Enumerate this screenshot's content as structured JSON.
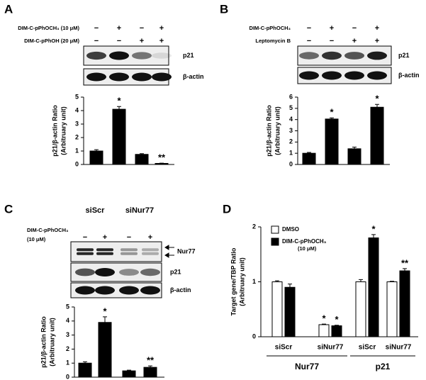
{
  "chart_data": [
    {
      "type": "bar",
      "panel": "A",
      "treatments": [
        {
          "label": [
            "DIM-C-pPhOCH₃ (10 μM)"
          ],
          "signs": [
            "−",
            "+",
            "−",
            "+"
          ]
        },
        {
          "label": [
            "DIM-C-pPhOH (20 μM)"
          ],
          "signs": [
            "−",
            "−",
            "+",
            "+"
          ]
        }
      ],
      "blots": [
        "p21",
        "β-actin"
      ],
      "ylabel": [
        "p21/β-actin Ratio",
        "(Arbitruary unit)"
      ],
      "values": [
        1.0,
        4.1,
        0.75,
        0.08
      ],
      "errors": [
        0.1,
        0.2,
        0.05,
        0.02
      ],
      "annotations": [
        null,
        "*",
        null,
        "**"
      ],
      "color": "#000000",
      "ylim": [
        0,
        5
      ],
      "yticks": [
        0,
        1,
        2,
        3,
        4,
        5
      ]
    },
    {
      "type": "bar",
      "panel": "B",
      "treatments": [
        {
          "label": [
            "DIM-C-pPhOCH₃"
          ],
          "signs": [
            "−",
            "+",
            "−",
            "+"
          ]
        },
        {
          "label": [
            "Leptomycin B"
          ],
          "signs": [
            "−",
            "−",
            "+",
            "+"
          ]
        }
      ],
      "blots": [
        "p21",
        "β-actin"
      ],
      "ylabel": [
        "p21/β-actin Ratio",
        "(Arbitruary unit)"
      ],
      "values": [
        1.0,
        4.05,
        1.4,
        5.1
      ],
      "errors": [
        0.07,
        0.1,
        0.15,
        0.25
      ],
      "annotations": [
        null,
        "*",
        null,
        "*"
      ],
      "color": "#000000",
      "ylim": [
        0,
        6
      ],
      "yticks": [
        0,
        1,
        2,
        3,
        4,
        5,
        6
      ]
    },
    {
      "type": "bar",
      "panel": "C",
      "groups": [
        "siScr",
        "siNur77"
      ],
      "treatments": [
        {
          "label": [
            "DIM-C-pPhOCH₃",
            "(10 μM)"
          ],
          "signs": [
            "−",
            "+",
            "−",
            "+"
          ]
        }
      ],
      "blots": [
        "Nur77",
        "p21",
        "β-actin"
      ],
      "ylabel": [
        "p21/β-actin Ratio",
        "(Arbitruary unit)"
      ],
      "values": [
        1.0,
        3.9,
        0.45,
        0.7
      ],
      "errors": [
        0.1,
        0.4,
        0.05,
        0.1
      ],
      "annotations": [
        null,
        "*",
        null,
        "**"
      ],
      "color": "#000000",
      "ylim": [
        0,
        5
      ],
      "yticks": [
        0,
        1,
        2,
        3,
        4,
        5
      ]
    },
    {
      "type": "grouped-bar",
      "panel": "D",
      "ylabel": [
        "Target gene/TBP Ratio",
        "(Arbitruary unit)"
      ],
      "categories": [
        "siScr",
        "siNur77",
        "siScr",
        "siNur77"
      ],
      "groups": [
        "Nur77",
        "p21"
      ],
      "series": [
        {
          "name": "DMSO",
          "color": "#ffffff",
          "values": [
            1.0,
            0.22,
            1.0,
            1.0
          ],
          "errors": [
            0.02,
            0.01,
            0.04,
            0.01
          ],
          "annotations": [
            null,
            "*",
            null,
            null
          ]
        },
        {
          "name": "DIM-C-pPhOCH₃",
          "name_line2": "(10 μM)",
          "color": "#000000",
          "values": [
            0.9,
            0.2,
            1.8,
            1.2
          ],
          "errors": [
            0.06,
            0.01,
            0.06,
            0.04
          ],
          "annotations": [
            null,
            "*",
            "*",
            "**"
          ]
        }
      ],
      "ylim": [
        0,
        2
      ],
      "yticks": [
        0,
        1,
        2
      ]
    }
  ]
}
